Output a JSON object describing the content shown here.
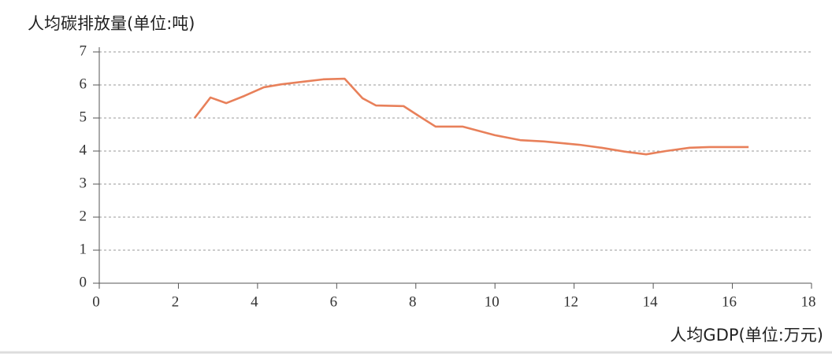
{
  "chart_data": {
    "type": "line",
    "title": "人均碳排放量(单位:吨)",
    "x_label": "人均GDP(单位:万元)",
    "x": [
      2.41,
      2.81,
      3.21,
      3.67,
      4.16,
      4.6,
      5.16,
      5.66,
      6.2,
      6.65,
      6.99,
      7.69,
      8.09,
      8.5,
      9.18,
      10.0,
      10.64,
      11.24,
      12.13,
      12.69,
      13.29,
      13.82,
      14.32,
      14.92,
      15.42,
      16.41
    ],
    "series": [
      {
        "color": "#e8805a",
        "values": [
          5.0,
          5.62,
          5.45,
          5.67,
          5.93,
          6.02,
          6.1,
          6.17,
          6.19,
          5.6,
          5.38,
          5.36,
          5.05,
          4.74,
          4.74,
          4.48,
          4.33,
          4.29,
          4.19,
          4.1,
          3.98,
          3.9,
          4.0,
          4.1,
          4.12,
          4.12
        ]
      }
    ],
    "xlim": [
      0,
      18
    ],
    "xticks": [
      0,
      2,
      4,
      6,
      8,
      10,
      12,
      14,
      16,
      18
    ],
    "ylim": [
      0,
      7
    ],
    "yticks": [
      0,
      1,
      2,
      3,
      4,
      5,
      6,
      7
    ],
    "grid": true
  }
}
